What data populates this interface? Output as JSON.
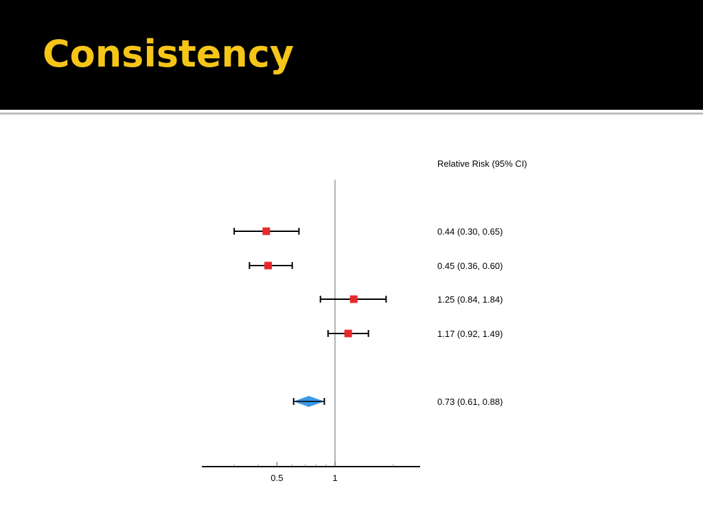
{
  "slide": {
    "title": "Consistency"
  },
  "colors": {
    "header_bg": "#000000",
    "title": "#f5c518",
    "study_marker": "#e8282b",
    "pooled_marker": "#3a97e8"
  },
  "chart_data": {
    "type": "forest",
    "column_header": "Relative Risk (95% CI)",
    "scale": "log",
    "xlim": [
      0.2,
      4.0
    ],
    "reference_line": 1,
    "xticks": [
      {
        "value": 0.5,
        "label": "0.5"
      },
      {
        "value": 1,
        "label": "1"
      }
    ],
    "studies": [
      {
        "rr": 0.44,
        "lower": 0.3,
        "upper": 0.65,
        "label": "0.44 (0.30, 0.65)"
      },
      {
        "rr": 0.45,
        "lower": 0.36,
        "upper": 0.6,
        "label": "0.45 (0.36, 0.60)"
      },
      {
        "rr": 1.25,
        "lower": 0.84,
        "upper": 1.84,
        "label": "1.25 (0.84, 1.84)"
      },
      {
        "rr": 1.17,
        "lower": 0.92,
        "upper": 1.49,
        "label": "1.17 (0.92, 1.49)"
      }
    ],
    "pooled": {
      "rr": 0.73,
      "lower": 0.61,
      "upper": 0.88,
      "label": "0.73 (0.61, 0.88)"
    }
  }
}
